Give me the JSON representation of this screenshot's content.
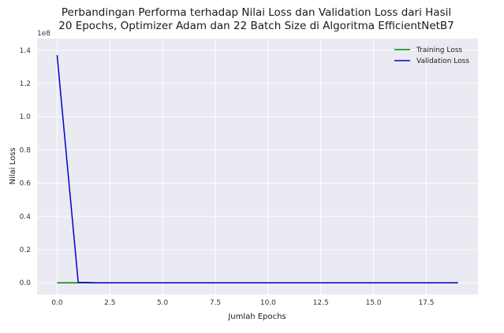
{
  "chart_data": {
    "type": "line",
    "title_line1": "Perbandingan Performa terhadap Nilai Loss dan Validation Loss dari Hasil",
    "title_line2": "20 Epochs, Optimizer Adam dan 22 Batch Size di Algoritma EfficientNetB7",
    "xlabel": "Jumlah Epochs",
    "ylabel": "Nilai Loss",
    "y_offset_label": "1e8",
    "xlim": [
      -0.95,
      19.95
    ],
    "ylim": [
      -0.07,
      1.47
    ],
    "x_ticks": [
      0,
      2.5,
      5,
      7.5,
      10,
      12.5,
      15,
      17.5
    ],
    "x_tick_labels": [
      "0.0",
      "2.5",
      "5.0",
      "7.5",
      "10.0",
      "12.5",
      "15.0",
      "17.5"
    ],
    "y_ticks": [
      0,
      0.2,
      0.4,
      0.6,
      0.8,
      1.0,
      1.2,
      1.4
    ],
    "y_tick_labels": [
      "0.0",
      "0.2",
      "0.4",
      "0.6",
      "0.8",
      "1.0",
      "1.2",
      "1.4"
    ],
    "grid": true,
    "legend_position": "top-right",
    "x": [
      0,
      1,
      2,
      3,
      4,
      5,
      6,
      7,
      8,
      9,
      10,
      11,
      12,
      13,
      14,
      15,
      16,
      17,
      18,
      19
    ],
    "series": [
      {
        "name": "Training Loss",
        "color": "#008000",
        "values": [
          0.0,
          0.0,
          0.0,
          0.0,
          0.0,
          0.0,
          0.0,
          0.0,
          0.0,
          0.0,
          0.0,
          0.0,
          0.0,
          0.0,
          0.0,
          0.0,
          0.0,
          0.0,
          0.0,
          0.0
        ]
      },
      {
        "name": "Validation Loss",
        "color": "#0000cc",
        "values": [
          1.37,
          0.003,
          0.0,
          0.0,
          0.0,
          0.0,
          0.0,
          0.0,
          0.0,
          0.0,
          0.0,
          0.0,
          0.0,
          0.0,
          0.0,
          0.0,
          0.0,
          0.0,
          0.0,
          0.0
        ]
      }
    ]
  }
}
